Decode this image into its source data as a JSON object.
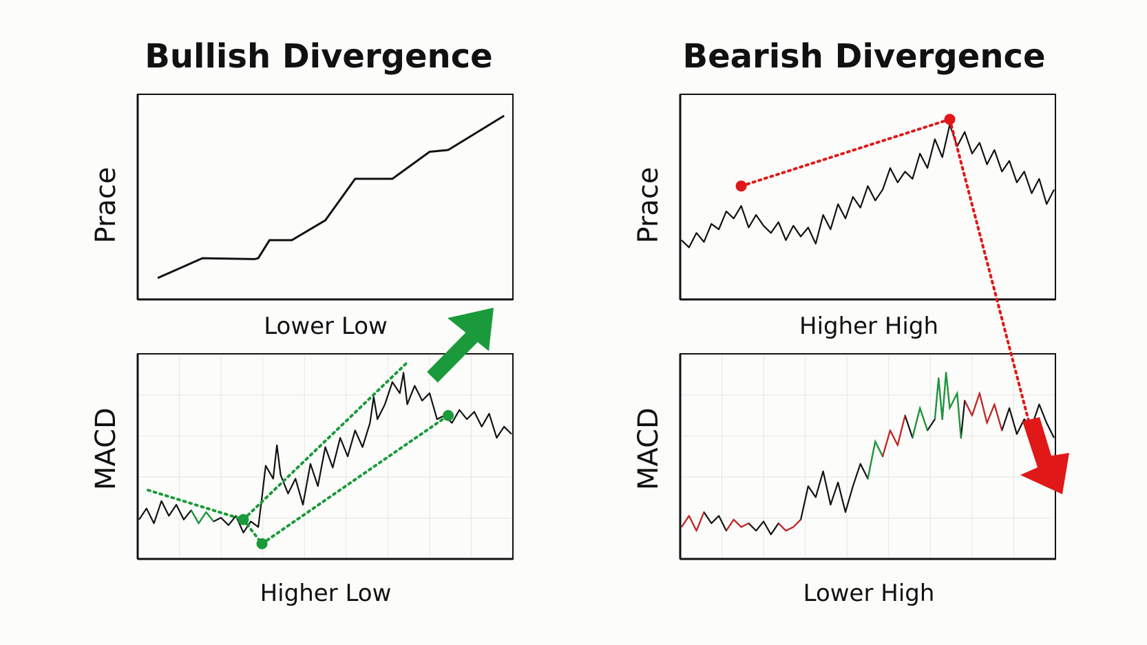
{
  "colors": {
    "bullish_accent": "#1a9a3a",
    "bearish_accent": "#e01818",
    "line": "#111111",
    "background": "#fcfcfa"
  },
  "panels": {
    "bullish": {
      "title": "Bullish Divergence",
      "price_ylabel": "Prace",
      "price_xlabel": "Lower Low",
      "macd_ylabel": "MACD",
      "macd_xlabel": "Higher Low",
      "arrow_icon": "arrow-up-right-icon"
    },
    "bearish": {
      "title": "Bearish Divergence",
      "price_ylabel": "Prace",
      "price_xlabel": "Higher High",
      "macd_ylabel": "MACD",
      "macd_xlabel": "Lower High",
      "arrow_icon": "arrow-down-icon"
    }
  },
  "chart_data": [
    {
      "id": "bullish-price",
      "type": "line",
      "title": "Bullish Divergence",
      "ylabel": "Prace",
      "xlabel": "Lower Low",
      "grid": false,
      "xlim": [
        0,
        100
      ],
      "ylim": [
        0,
        100
      ],
      "series": [
        {
          "x": [
            5,
            17,
            31,
            32,
            35,
            41,
            50,
            58,
            68,
            78,
            83,
            98
          ],
          "y": [
            5,
            16,
            15.5,
            16,
            26,
            26,
            37,
            60,
            60,
            75,
            76,
            95
          ]
        }
      ]
    },
    {
      "id": "bullish-macd",
      "type": "line",
      "ylabel": "MACD",
      "xlabel": "Higher Low",
      "grid": true,
      "xlim": [
        0,
        100
      ],
      "ylim": [
        0,
        100
      ],
      "series": [
        {
          "x": [
            0,
            2,
            4,
            6,
            8,
            10,
            12,
            14,
            16,
            18,
            20,
            22,
            24,
            26,
            28,
            30,
            32,
            33,
            34,
            36,
            37,
            38,
            40,
            42,
            44,
            46,
            48,
            50,
            52,
            54,
            56,
            58,
            60,
            62,
            63,
            64,
            66,
            68,
            70,
            71,
            72,
            74,
            76,
            78,
            80,
            82,
            84,
            86,
            88,
            90,
            92,
            94,
            96,
            98,
            100
          ],
          "y": [
            16,
            22,
            14,
            26,
            18,
            24,
            16,
            21,
            14,
            20,
            15,
            17,
            13,
            18,
            9,
            15,
            12,
            28,
            45,
            38,
            56,
            40,
            30,
            38,
            24,
            46,
            34,
            55,
            44,
            60,
            50,
            64,
            55,
            68,
            82,
            70,
            78,
            90,
            84,
            95,
            78,
            88,
            80,
            84,
            70,
            72,
            68,
            75,
            70,
            74,
            66,
            73,
            60,
            66,
            62
          ]
        }
      ],
      "annotations": [
        {
          "type": "point",
          "x": 28,
          "y": 16
        },
        {
          "type": "point",
          "x": 33,
          "y": 3
        },
        {
          "type": "point",
          "x": 83,
          "y": 72
        }
      ]
    },
    {
      "id": "bearish-price",
      "type": "line",
      "title": "Bearish Divergence",
      "ylabel": "Prace",
      "xlabel": "Higher High",
      "grid": false,
      "xlim": [
        0,
        100
      ],
      "ylim": [
        0,
        100
      ],
      "series": [
        {
          "x": [
            0,
            2,
            4,
            6,
            8,
            10,
            12,
            14,
            16,
            18,
            20,
            22,
            24,
            26,
            28,
            30,
            32,
            34,
            36,
            38,
            40,
            42,
            44,
            46,
            48,
            50,
            52,
            54,
            56,
            58,
            60,
            62,
            64,
            66,
            68,
            70,
            72,
            74,
            76,
            78,
            80,
            82,
            84,
            86,
            88,
            90,
            92,
            94,
            96,
            98,
            100
          ],
          "y": [
            26,
            22,
            30,
            25,
            35,
            32,
            42,
            38,
            45,
            33,
            40,
            34,
            30,
            36,
            26,
            34,
            28,
            33,
            24,
            40,
            32,
            46,
            38,
            50,
            44,
            56,
            48,
            54,
            66,
            58,
            64,
            60,
            74,
            66,
            82,
            72,
            90,
            78,
            86,
            74,
            80,
            68,
            76,
            64,
            70,
            58,
            64,
            52,
            60,
            46,
            54
          ]
        }
      ],
      "annotations": [
        {
          "type": "point",
          "x": 16,
          "y": 56
        },
        {
          "type": "point",
          "x": 72,
          "y": 93
        }
      ]
    },
    {
      "id": "bearish-macd",
      "type": "line",
      "ylabel": "MACD",
      "xlabel": "Lower High",
      "grid": true,
      "xlim": [
        0,
        100
      ],
      "ylim": [
        0,
        100
      ],
      "series": [
        {
          "x": [
            0,
            2,
            4,
            6,
            8,
            10,
            12,
            14,
            16,
            18,
            20,
            22,
            24,
            26,
            28,
            30,
            32,
            34,
            36,
            38,
            40,
            42,
            44,
            46,
            48,
            50,
            52,
            54,
            56,
            58,
            60,
            62,
            64,
            66,
            68,
            69,
            70,
            71,
            72,
            74,
            75,
            76,
            78,
            80,
            82,
            84,
            86,
            88,
            90,
            92,
            94,
            96,
            98,
            100
          ],
          "y": [
            12,
            18,
            10,
            20,
            14,
            18,
            10,
            16,
            12,
            14,
            10,
            15,
            8,
            14,
            10,
            12,
            16,
            34,
            28,
            42,
            24,
            36,
            20,
            34,
            46,
            38,
            58,
            50,
            64,
            56,
            72,
            60,
            76,
            64,
            70,
            92,
            70,
            95,
            76,
            84,
            60,
            80,
            72,
            84,
            68,
            78,
            64,
            76,
            62,
            70,
            66,
            78,
            68,
            60
          ]
        }
      ]
    }
  ]
}
